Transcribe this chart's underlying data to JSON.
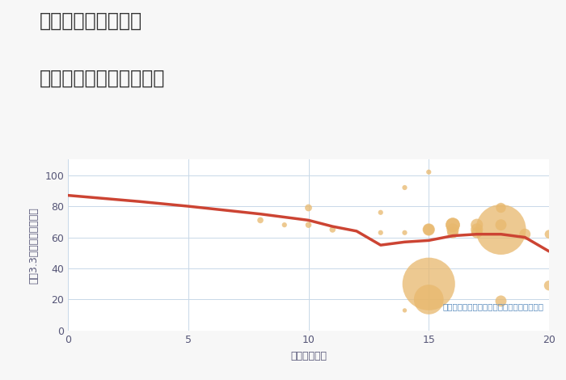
{
  "title_line1": "三重県桑名市安永の",
  "title_line2": "駅距離別中古戸建て価格",
  "xlabel": "駅距離（分）",
  "ylabel": "坪（3.3㎡）単価（万円）",
  "annotation": "円の大きさは、取引のあった物件面積を示す",
  "background_color": "#f7f7f7",
  "plot_bg_color": "#ffffff",
  "line_color": "#cc4433",
  "line_x": [
    0,
    3,
    5,
    8,
    9,
    10,
    11,
    12,
    13,
    14,
    15,
    16,
    17,
    18,
    19,
    20
  ],
  "line_y": [
    87,
    83,
    80,
    75,
    73,
    71,
    67,
    64,
    55,
    57,
    58,
    61,
    62,
    62,
    60,
    51
  ],
  "scatter_x": [
    8,
    9,
    10,
    10,
    11,
    13,
    13,
    14,
    14,
    14,
    15,
    15,
    15,
    15,
    15,
    16,
    16,
    16,
    16,
    17,
    17,
    17,
    18,
    18,
    18,
    18,
    19,
    20,
    20
  ],
  "scatter_y": [
    71,
    68,
    79,
    68,
    65,
    76,
    63,
    92,
    63,
    13,
    102,
    30,
    20,
    65,
    65,
    63,
    65,
    68,
    68,
    63,
    68,
    65,
    79,
    65,
    68,
    19,
    62,
    29,
    62
  ],
  "scatter_size": [
    30,
    20,
    40,
    30,
    30,
    20,
    20,
    20,
    20,
    15,
    20,
    2200,
    700,
    120,
    100,
    100,
    120,
    160,
    160,
    100,
    120,
    120,
    80,
    2000,
    100,
    100,
    100,
    80,
    60
  ],
  "scatter_color": "#e8b86d",
  "scatter_alpha": 0.75,
  "xlim": [
    0,
    20
  ],
  "ylim": [
    0,
    110
  ],
  "xticks": [
    0,
    5,
    10,
    15,
    20
  ],
  "yticks": [
    0,
    20,
    40,
    60,
    80,
    100
  ],
  "grid_color": "#c8d8e8",
  "title_color": "#333333",
  "label_color": "#555577",
  "annotation_color": "#5588bb",
  "title_fontsize": 17,
  "axis_label_fontsize": 9,
  "tick_fontsize": 9
}
